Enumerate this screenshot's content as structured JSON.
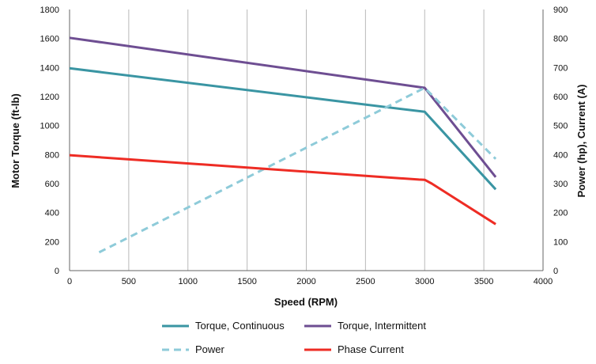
{
  "chart_data": {
    "type": "line",
    "title": "",
    "xlabel": "Speed (RPM)",
    "ylabel": "Motor Torque (ft-lb)",
    "y2label": "Power (hp), Current (A)",
    "xlim": [
      0,
      4000
    ],
    "ylim": [
      0,
      1800
    ],
    "y2lim": [
      0,
      900
    ],
    "x_ticks": [
      0,
      500,
      1000,
      1500,
      2000,
      2500,
      3000,
      3500,
      4000
    ],
    "y_ticks": [
      0,
      200,
      400,
      600,
      800,
      1000,
      1200,
      1400,
      1600,
      1800
    ],
    "y2_ticks": [
      0,
      100,
      200,
      300,
      400,
      500,
      600,
      700,
      800,
      900
    ],
    "grid": "vertical",
    "legend_position": "bottom",
    "series": [
      {
        "name": "Torque, Continuous",
        "axis": "left",
        "color": "#3a95a3",
        "dash": "solid",
        "points": [
          [
            0,
            1395
          ],
          [
            3000,
            1095
          ],
          [
            3600,
            560
          ]
        ]
      },
      {
        "name": "Torque, Intermittent",
        "axis": "left",
        "color": "#6e4e92",
        "dash": "solid",
        "points": [
          [
            0,
            1605
          ],
          [
            3000,
            1260
          ],
          [
            3600,
            645
          ]
        ]
      },
      {
        "name": "Power",
        "axis": "right",
        "color": "#8ecbd9",
        "dash": "dashed",
        "points": [
          [
            250,
            63
          ],
          [
            3000,
            630
          ],
          [
            3600,
            385
          ]
        ]
      },
      {
        "name": "Phase Current",
        "axis": "right",
        "color": "#ee2c24",
        "dash": "solid",
        "points": [
          [
            0,
            398
          ],
          [
            2950,
            314
          ],
          [
            3000,
            313
          ],
          [
            3060,
            300
          ],
          [
            3600,
            160
          ]
        ]
      }
    ]
  }
}
